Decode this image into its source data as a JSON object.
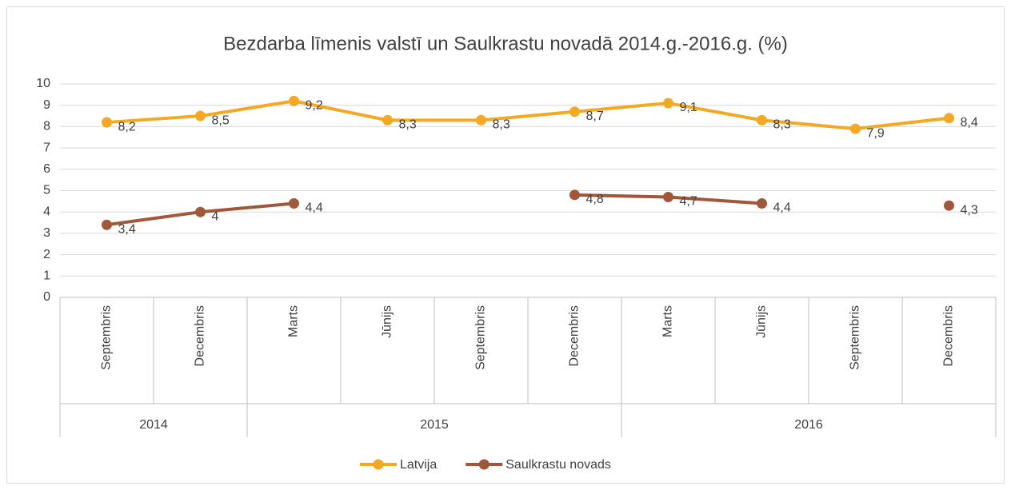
{
  "chart_data": {
    "type": "line",
    "title": "Bezdarba līmenis valstī un Saulkrastu novadā 2014.g.-2016.g. (%)",
    "categories": [
      "Septembris",
      "Decembris",
      "Marts",
      "Jūnijs",
      "Septembris",
      "Decembris",
      "Marts",
      "Jūnijs",
      "Septembris",
      "Decembris"
    ],
    "groups": [
      {
        "label": "2014",
        "size": 2
      },
      {
        "label": "2015",
        "size": 4
      },
      {
        "label": "2016",
        "size": 4
      }
    ],
    "series": [
      {
        "name": "Latvija",
        "color": "#f4a925",
        "values": [
          8.2,
          8.5,
          9.2,
          8.3,
          8.3,
          8.7,
          9.1,
          8.3,
          7.9,
          8.4
        ],
        "value_labels": [
          "8,2",
          "8,5",
          "9,2",
          "8,3",
          "8,3",
          "8,7",
          "9,1",
          "8,3",
          "7,9",
          "8,4"
        ]
      },
      {
        "name": "Saulkrastu novads",
        "color": "#a0573a",
        "values": [
          3.4,
          4,
          4.4,
          null,
          null,
          4.8,
          4.7,
          4.4,
          null,
          4.3
        ],
        "value_labels": [
          "3,4",
          "4",
          "4,4",
          null,
          null,
          "4,8",
          "4,7",
          "4,4",
          null,
          "4,3"
        ]
      }
    ],
    "ylim": [
      0,
      10
    ],
    "yticks": [
      0,
      1,
      2,
      3,
      4,
      5,
      6,
      7,
      8,
      9,
      10
    ],
    "grid": true,
    "legend": "bottom"
  }
}
